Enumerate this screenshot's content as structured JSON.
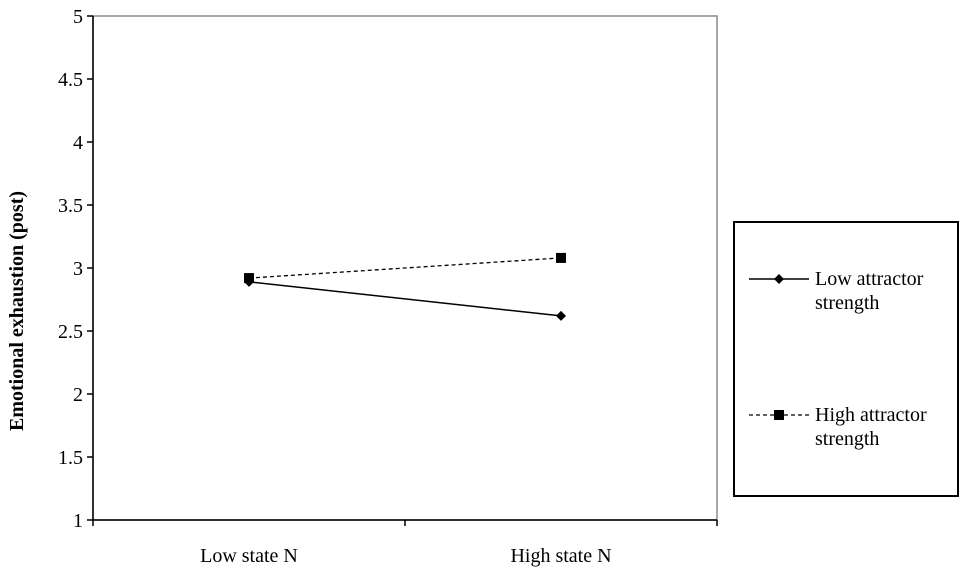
{
  "chart_data": {
    "type": "line",
    "title": "",
    "xlabel": "",
    "ylabel": "Emotional exhaustion (post)",
    "categories": [
      "Low state N",
      "High state N"
    ],
    "ylim": [
      1,
      5
    ],
    "yticks": [
      "1",
      "1.5",
      "2",
      "2.5",
      "3",
      "3.5",
      "4",
      "4.5",
      "5"
    ],
    "grid": false,
    "legend_position": "right",
    "series": [
      {
        "name": "Low attractor strength",
        "values": [
          2.89,
          2.62
        ],
        "marker": "diamond",
        "line_style": "solid",
        "color": "#000000"
      },
      {
        "name": "High attractor strength",
        "values": [
          2.92,
          3.08
        ],
        "marker": "square",
        "line_style": "dashed",
        "color": "#000000"
      }
    ]
  },
  "legend": {
    "entries": [
      {
        "line1": "Low attractor",
        "line2": "strength"
      },
      {
        "line1": "High attractor",
        "line2": "strength"
      }
    ]
  }
}
